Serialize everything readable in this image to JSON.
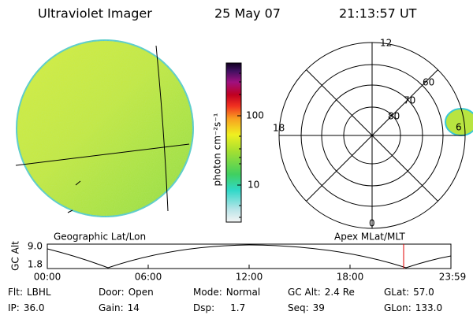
{
  "header": {
    "title": "Ultraviolet Imager",
    "date": "25 May 07",
    "time": "21:13:57 UT"
  },
  "colorbar": {
    "label": "photon cm⁻²s⁻¹",
    "ticks": [
      "100",
      "10"
    ]
  },
  "polar_plot": {
    "mlt_labels": [
      "12",
      "18",
      "0",
      "6"
    ],
    "lat_labels": [
      "60",
      "70",
      "80"
    ]
  },
  "timeline": {
    "left_title": "Geographic Lat/Lon",
    "right_title": "Apex MLat/MLT",
    "y_label": "GC Alt",
    "y_ticks": [
      "9.0",
      "1.8"
    ],
    "x_ticks": [
      "00:00",
      "06:00",
      "12:00",
      "18:00",
      "23:59"
    ]
  },
  "footer": {
    "rows": [
      [
        {
          "label": "Flt:",
          "value": "LBHL"
        },
        {
          "label": "Door:",
          "value": "Open"
        },
        {
          "label": "Mode:",
          "value": "Normal"
        },
        {
          "label": "GC Alt:",
          "value": "2.4 Re"
        },
        {
          "label": "GLat:",
          "value": "57.0"
        }
      ],
      [
        {
          "label": "IP:",
          "value": "36.0"
        },
        {
          "label": "Gain:",
          "value": "14"
        },
        {
          "label": "Dsp:",
          "value": "1.7"
        },
        {
          "label": "Seq:",
          "value": "39"
        },
        {
          "label": "GLon:",
          "value": "133.0"
        }
      ]
    ]
  }
}
